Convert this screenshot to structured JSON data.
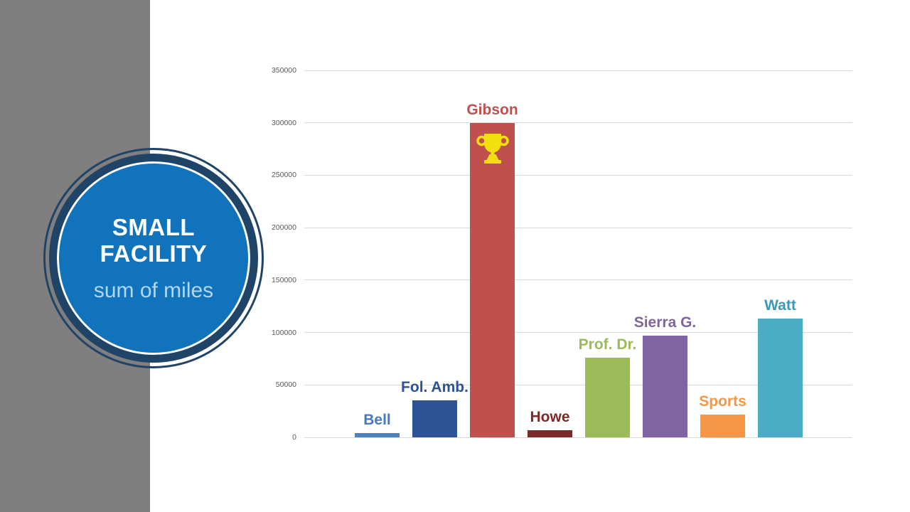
{
  "slide": {
    "background": "#FFFFFF",
    "accent_band_color": "#7F7F7F"
  },
  "badge": {
    "title_line1": "SMALL",
    "title_line2": "FACILITY",
    "subtitle": "sum of miles",
    "fill_color": "#1173BB",
    "ring_color": "#1F4468",
    "title_color": "#FFFFFF",
    "subtitle_color": "#AFD7F0"
  },
  "chart_data": {
    "type": "bar",
    "title": "",
    "xlabel": "",
    "ylabel": "",
    "categories": [
      "Bell",
      "Fol. Amb.",
      "Gibson",
      "Howe",
      "Prof. Dr.",
      "Sierra G.",
      "Sports",
      "Watt"
    ],
    "values": [
      4000,
      35000,
      300000,
      7000,
      76000,
      97000,
      22000,
      113000
    ],
    "bar_colors": [
      "#4F81BD",
      "#2E5395",
      "#C0504D",
      "#7A2A28",
      "#9BBB59",
      "#8064A2",
      "#F79646",
      "#4BACC6"
    ],
    "label_colors": [
      "#4778C2",
      "#2E5294",
      "#C0504D",
      "#7B2927",
      "#9BBB59",
      "#8064A2",
      "#F79646",
      "#3A99B8"
    ],
    "ylim": [
      0,
      350000
    ],
    "ytick_step": 50000,
    "yticks": [
      "0",
      "50000",
      "100000",
      "150000",
      "200000",
      "250000",
      "300000",
      "350000"
    ],
    "grid": true,
    "gridline_color": "#D9D9D9",
    "tick_label_color": "#595959",
    "legend": "none",
    "winner": {
      "category": "Gibson",
      "icon": "trophy-icon",
      "icon_color": "#F2DF0D"
    }
  }
}
